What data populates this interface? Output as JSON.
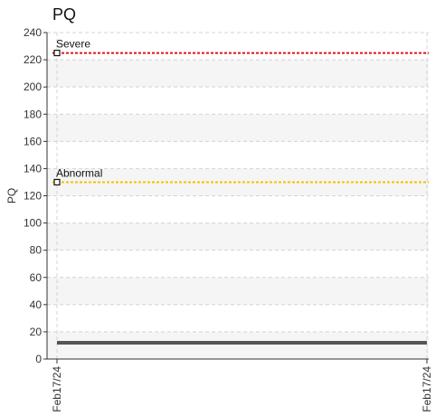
{
  "chart_data": {
    "type": "line",
    "title": "PQ",
    "xlabel": "",
    "ylabel": "PQ",
    "ylim": [
      0,
      240
    ],
    "y_ticks": [
      0,
      20,
      40,
      60,
      80,
      100,
      120,
      140,
      160,
      180,
      200,
      220,
      240
    ],
    "x_ticks": [
      "Feb17/24",
      "Feb17/24"
    ],
    "grid": true,
    "series": [
      {
        "values": [
          12,
          12
        ],
        "color": "#555555"
      }
    ],
    "thresholds": [
      {
        "label": "Severe",
        "value": 225,
        "color": "#e0141e"
      },
      {
        "label": "Abnormal",
        "value": 130,
        "color": "#f2c200"
      }
    ]
  }
}
